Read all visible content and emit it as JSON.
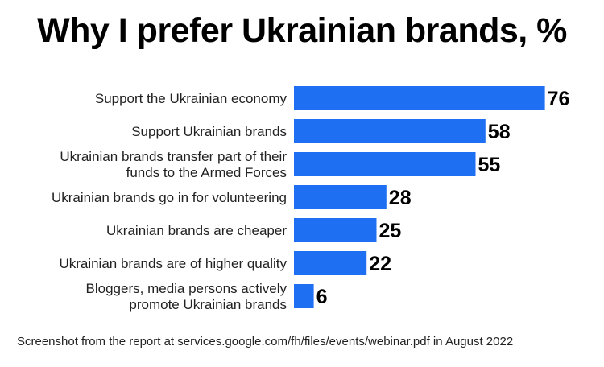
{
  "chart_data": {
    "type": "bar",
    "orientation": "horizontal",
    "title": "Why I prefer Ukrainian brands, %",
    "categories": [
      [
        "Support the Ukrainian economy"
      ],
      [
        "Support Ukrainian brands"
      ],
      [
        "Ukrainian brands transfer part of their",
        "funds to the Armed Forces"
      ],
      [
        "Ukrainian brands go in for volunteering"
      ],
      [
        "Ukrainian brands are cheaper"
      ],
      [
        "Ukrainian brands are of higher quality"
      ],
      [
        "Bloggers, media persons actively",
        "promote Ukrainian brands"
      ]
    ],
    "values": [
      76,
      58,
      55,
      28,
      25,
      22,
      6
    ],
    "bar_color": "#1f6ff2",
    "data_labels": true,
    "grid": false,
    "legend": "none"
  },
  "footer": {
    "source_note": "Screenshot from the report at services.google.com/fh/files/events/webinar.pdf in August 2022"
  }
}
